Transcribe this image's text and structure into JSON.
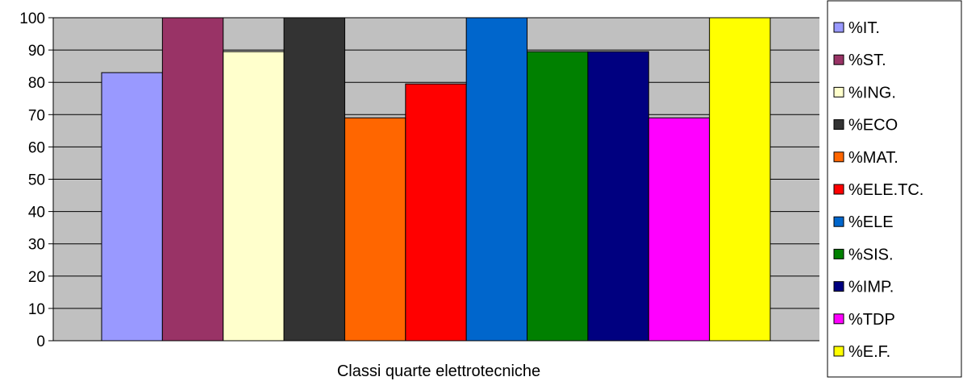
{
  "chart_data": {
    "type": "bar",
    "xlabel": "Classi quarte elettrotecniche",
    "ylim": [
      0,
      100
    ],
    "yticks": [
      "0",
      "10",
      "20",
      "30",
      "40",
      "50",
      "60",
      "70",
      "80",
      "90",
      "100"
    ],
    "grid": true,
    "legend_position": "right",
    "plot_background": "#c0c0c0",
    "series": [
      {
        "name": "%IT.",
        "value": 83,
        "color": "#9999ff"
      },
      {
        "name": "%ST.",
        "value": 100,
        "color": "#993366"
      },
      {
        "name": "%ING.",
        "value": 89.5,
        "color": "#ffffcc"
      },
      {
        "name": "%ECO",
        "value": 100,
        "color": "#333333"
      },
      {
        "name": "%MAT.",
        "value": 69,
        "color": "#ff6600"
      },
      {
        "name": "%ELE.TC.",
        "value": 79.5,
        "color": "#ff0000"
      },
      {
        "name": "%ELE",
        "value": 100,
        "color": "#0066cc"
      },
      {
        "name": "%SIS.",
        "value": 89.5,
        "color": "#008000"
      },
      {
        "name": "%IMP.",
        "value": 89.5,
        "color": "#000080"
      },
      {
        "name": "%TDP",
        "value": 69,
        "color": "#ff00ff"
      },
      {
        "name": "%E.F.",
        "value": 100,
        "color": "#ffff00"
      }
    ]
  }
}
